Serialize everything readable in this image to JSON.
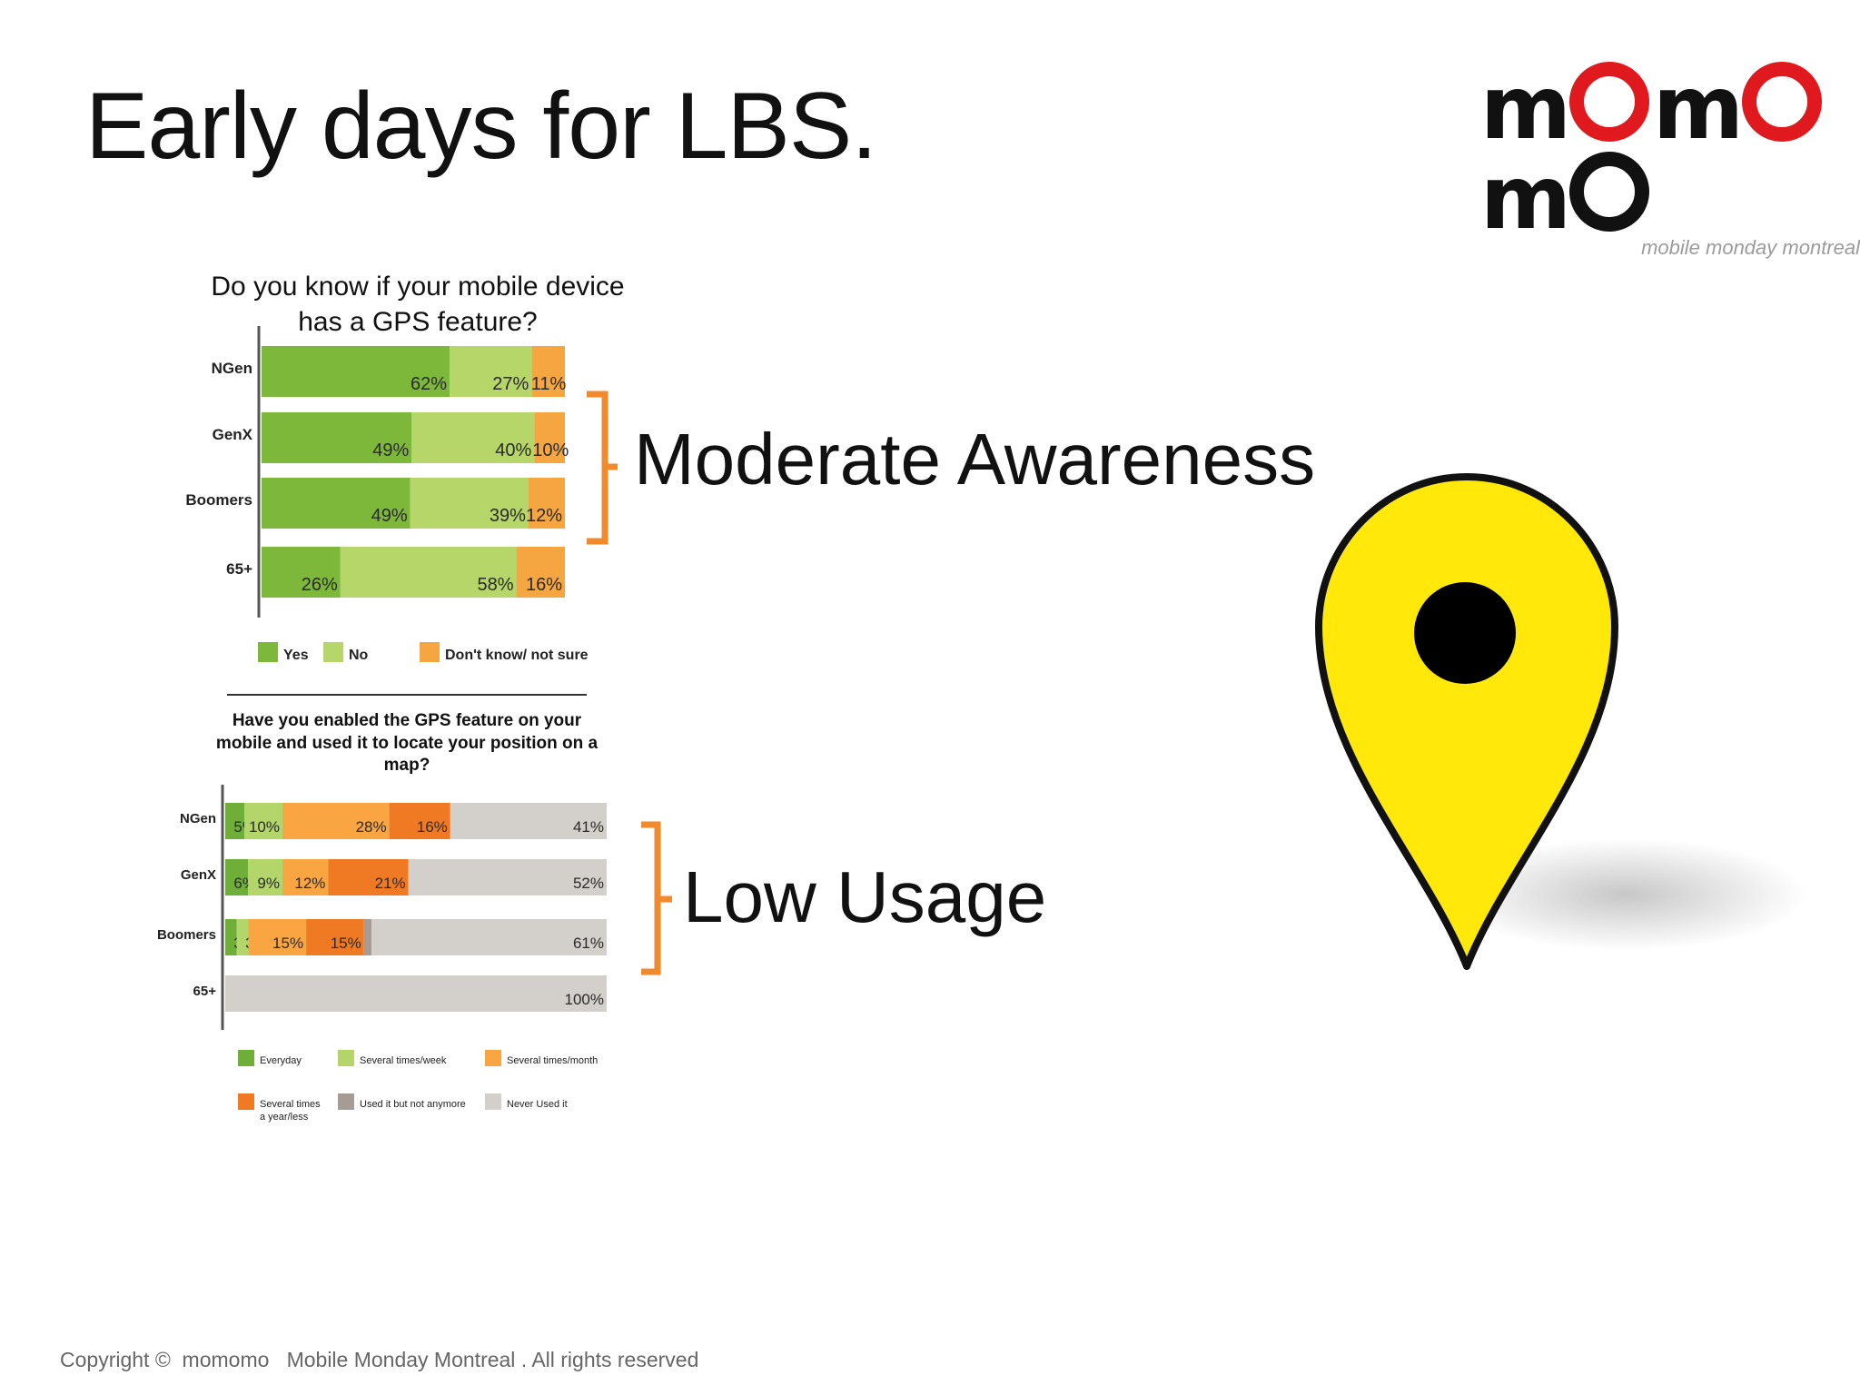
{
  "slide": {
    "title": "Early days for LBS.",
    "footer": "Copyright ©  momomo   Mobile Monday Montreal . All rights reserved",
    "logo": {
      "word_start": "m",
      "word_mid": "m",
      "word_end": "m",
      "sub": "mobile monday montreal"
    },
    "callouts": {
      "awareness": "Moderate Awareness",
      "usage": "Low Usage"
    },
    "colors": {
      "bracket": "#f08a2c",
      "pin_fill": "#ffe80a",
      "pin_outline": "#111111",
      "logo_red": "#e0191e"
    },
    "icons": [
      "location-pin-icon",
      "bracket-icon"
    ]
  },
  "chart_data": [
    {
      "type": "bar",
      "orientation": "horizontal",
      "stacked": true,
      "title": "Do you know if your mobile device has a GPS feature?",
      "categories": [
        "NGen",
        "GenX",
        "Boomers",
        "65+"
      ],
      "series": [
        {
          "name": "Yes",
          "color": "#7db83a",
          "values": [
            62,
            49,
            49,
            26
          ]
        },
        {
          "name": "No",
          "color": "#b6d66a",
          "values": [
            27,
            40,
            39,
            58
          ]
        },
        {
          "name": "Don't know/ not sure",
          "color": "#f6a641",
          "values": [
            11,
            10,
            12,
            16
          ]
        }
      ],
      "labels": [
        [
          "62%",
          "27%",
          "11%"
        ],
        [
          "49%",
          "40%",
          "10%"
        ],
        [
          "49%",
          "39%",
          "12%"
        ],
        [
          "26%",
          "58%",
          "16%"
        ]
      ],
      "legend_placement": "bottom",
      "grid": false
    },
    {
      "type": "bar",
      "orientation": "horizontal",
      "stacked": true,
      "title": "Have you enabled the GPS feature on your mobile and used it to locate your position on a map?",
      "categories": [
        "NGen",
        "GenX",
        "Boomers",
        "65+"
      ],
      "series": [
        {
          "name": "Everyday",
          "color": "#6fae38",
          "values": [
            5,
            6,
            3,
            0
          ]
        },
        {
          "name": "Several times/week",
          "color": "#b3d56a",
          "values": [
            10,
            9,
            3,
            0
          ]
        },
        {
          "name": "Several times/month",
          "color": "#f8a542",
          "values": [
            28,
            12,
            15,
            0
          ]
        },
        {
          "name": "Several times a year/less",
          "color": "#f07a23",
          "values": [
            16,
            21,
            15,
            0
          ]
        },
        {
          "name": "Used it but not anymore",
          "color": "#a59d95",
          "values": [
            0,
            0,
            2,
            0
          ]
        },
        {
          "name": "Never Used it",
          "color": "#d3cfcb",
          "values": [
            41,
            52,
            61,
            100
          ]
        }
      ],
      "labels": [
        [
          "5%",
          "10%",
          "28%",
          "16%",
          "0%",
          "41%"
        ],
        [
          "6%",
          "9%",
          "12%",
          "21%",
          "0%",
          "52%"
        ],
        [
          "3%",
          "3%",
          "15%",
          "15%",
          "2%",
          "61%"
        ],
        [
          "",
          "",
          "",
          "",
          "0%",
          "100%"
        ]
      ],
      "legend_placement": "bottom",
      "grid": false
    }
  ]
}
